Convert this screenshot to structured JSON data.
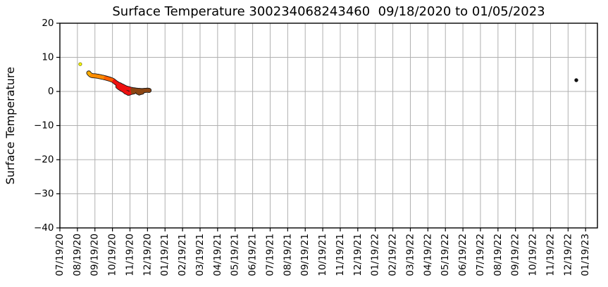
{
  "chart_data": {
    "type": "scatter",
    "title": "Surface Temperature 300234068243460  09/18/2020 to 01/05/2023",
    "xlabel": "",
    "ylabel": "Surface Temperature",
    "ylim": [
      -40,
      20
    ],
    "ytick_values": [
      20,
      10,
      0,
      -10,
      -20,
      -30,
      -40
    ],
    "ytick_labels": [
      "20",
      "10",
      "0",
      "−10",
      "−20",
      "−30",
      "−40"
    ],
    "x_tick_labels": [
      "07/19/20",
      "08/19/20",
      "09/19/20",
      "10/19/20",
      "11/19/20",
      "12/19/20",
      "01/19/21",
      "02/19/21",
      "03/19/21",
      "04/19/21",
      "05/19/21",
      "06/19/21",
      "07/19/21",
      "08/19/21",
      "09/19/21",
      "10/19/21",
      "11/19/21",
      "12/19/21",
      "01/19/22",
      "02/19/22",
      "03/19/22",
      "04/19/22",
      "05/19/22",
      "06/19/22",
      "07/19/22",
      "08/19/22",
      "09/19/22",
      "10/19/22",
      "11/19/22",
      "12/19/22",
      "01/19/23"
    ],
    "x_unit": "months after 07/19/20 tick (tick-index units)",
    "grid": true,
    "grid_color": "#b0b0b0",
    "axis_color": "#000000",
    "background_color": "#ffffff",
    "legend": null,
    "series": [
      {
        "name": "first-fix-yellow",
        "color": "#ffff00",
        "edge": "#7f7f00",
        "r": 1.7,
        "points": [
          [
            1.16,
            8.0
          ]
        ]
      },
      {
        "name": "sep-2020-bright-orange",
        "color": "#ffab00",
        "edge": "#1a1a1a",
        "r": 2.6,
        "points": [
          [
            1.65,
            5.4
          ],
          [
            1.71,
            5.05
          ],
          [
            1.77,
            4.8
          ]
        ]
      },
      {
        "name": "sep-oct-2020-orange",
        "color": "#ff8c00",
        "edge": "#1a1a1a",
        "r": 2.6,
        "points": [
          [
            1.83,
            4.65
          ],
          [
            1.9,
            4.6
          ],
          [
            1.97,
            4.6
          ],
          [
            2.04,
            4.55
          ],
          [
            2.11,
            4.5
          ],
          [
            2.18,
            4.45
          ],
          [
            2.25,
            4.35
          ],
          [
            2.32,
            4.3
          ],
          [
            2.39,
            4.2
          ],
          [
            2.46,
            4.15
          ],
          [
            2.53,
            4.05
          ]
        ]
      },
      {
        "name": "oct-2020-orange-red",
        "color": "#ff5f00",
        "edge": "#1a1a1a",
        "r": 2.6,
        "points": [
          [
            2.6,
            3.95
          ],
          [
            2.67,
            3.85
          ],
          [
            2.74,
            3.75
          ],
          [
            2.81,
            3.65
          ],
          [
            2.88,
            3.55
          ],
          [
            2.95,
            3.4
          ],
          [
            3.02,
            3.25
          ]
        ]
      },
      {
        "name": "nov-2020-red",
        "color": "#ee1010",
        "edge": "#1a1a1a",
        "r": 2.6,
        "points": [
          [
            3.09,
            3.0
          ],
          [
            3.16,
            2.7
          ],
          [
            3.23,
            2.45
          ],
          [
            3.3,
            2.2
          ],
          [
            3.37,
            2.05
          ],
          [
            3.44,
            1.9
          ],
          [
            3.51,
            1.7
          ],
          [
            3.58,
            1.55
          ],
          [
            3.65,
            1.35
          ],
          [
            3.72,
            1.15
          ],
          [
            3.79,
            1.0
          ],
          [
            3.86,
            0.9
          ],
          [
            3.93,
            0.8
          ],
          [
            4.0,
            0.7
          ],
          [
            4.07,
            0.6
          ],
          [
            3.31,
            1.45
          ],
          [
            3.39,
            1.1
          ],
          [
            3.47,
            0.85
          ],
          [
            3.55,
            0.6
          ],
          [
            3.63,
            0.35
          ],
          [
            3.71,
            0.1
          ],
          [
            3.75,
            -0.15
          ],
          [
            3.83,
            -0.3
          ],
          [
            3.91,
            -0.55
          ],
          [
            3.99,
            -0.45
          ],
          [
            4.05,
            -0.3
          ]
        ]
      },
      {
        "name": "dec-2020-brown",
        "color": "#8b4513",
        "edge": "#1a1a1a",
        "r": 2.6,
        "points": [
          [
            4.12,
            0.55
          ],
          [
            4.19,
            0.5
          ],
          [
            4.26,
            0.45
          ],
          [
            4.33,
            0.4
          ],
          [
            4.4,
            0.35
          ],
          [
            4.47,
            0.3
          ],
          [
            4.54,
            0.3
          ],
          [
            4.61,
            0.25
          ],
          [
            4.68,
            0.25
          ],
          [
            4.75,
            0.25
          ],
          [
            4.82,
            0.3
          ],
          [
            4.89,
            0.3
          ],
          [
            4.96,
            0.35
          ],
          [
            5.03,
            0.35
          ],
          [
            5.09,
            0.3
          ],
          [
            4.15,
            -0.2
          ],
          [
            4.23,
            -0.1
          ],
          [
            4.45,
            -0.25
          ],
          [
            4.53,
            -0.45
          ],
          [
            4.61,
            -0.3
          ],
          [
            4.69,
            -0.2
          ]
        ]
      },
      {
        "name": "last-fix-black",
        "color": "#111111",
        "edge": "#111111",
        "r": 1.8,
        "points": [
          [
            29.47,
            3.3
          ]
        ]
      }
    ]
  }
}
